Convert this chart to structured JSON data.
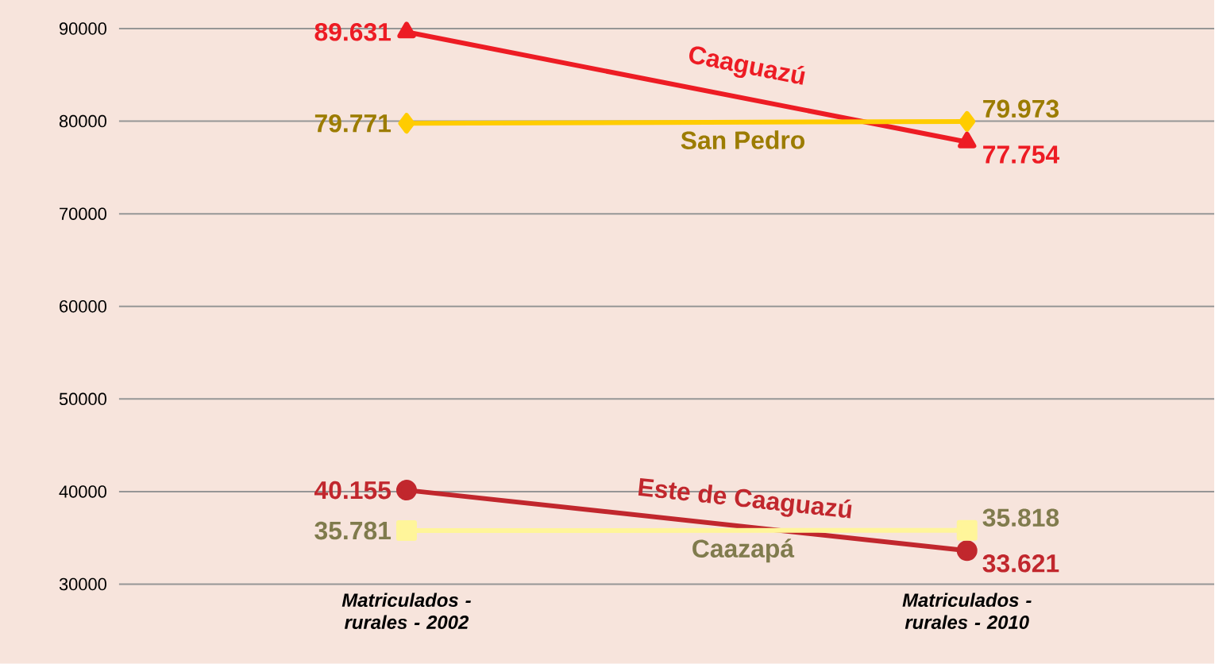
{
  "chart_data": {
    "type": "line",
    "categories": [
      "Matriculados - rurales - 2002",
      "Matriculados - rurales - 2010"
    ],
    "series": [
      {
        "name": "Caaguazú",
        "color": "#ed1c24",
        "marker": "triangle",
        "values": [
          89631,
          77754
        ],
        "value_labels": [
          "89.631",
          "77.754"
        ]
      },
      {
        "name": "San Pedro",
        "color": "#ffcc00",
        "marker": "diamond",
        "values": [
          79771,
          79973
        ],
        "value_labels": [
          "79.771",
          "79.973"
        ]
      },
      {
        "name": "Este de Caaguazú",
        "color": "#c1272d",
        "marker": "circle",
        "values": [
          40155,
          33621
        ],
        "value_labels": [
          "40.155",
          "33.621"
        ]
      },
      {
        "name": "Caazapá",
        "color": "#fff59a",
        "marker": "square",
        "values": [
          35781,
          35818
        ],
        "value_labels": [
          "35.781",
          "35.818"
        ]
      }
    ],
    "ylim": [
      30000,
      90000
    ],
    "yticks": [
      30000,
      40000,
      50000,
      60000,
      70000,
      80000,
      90000
    ],
    "grid": "y"
  }
}
